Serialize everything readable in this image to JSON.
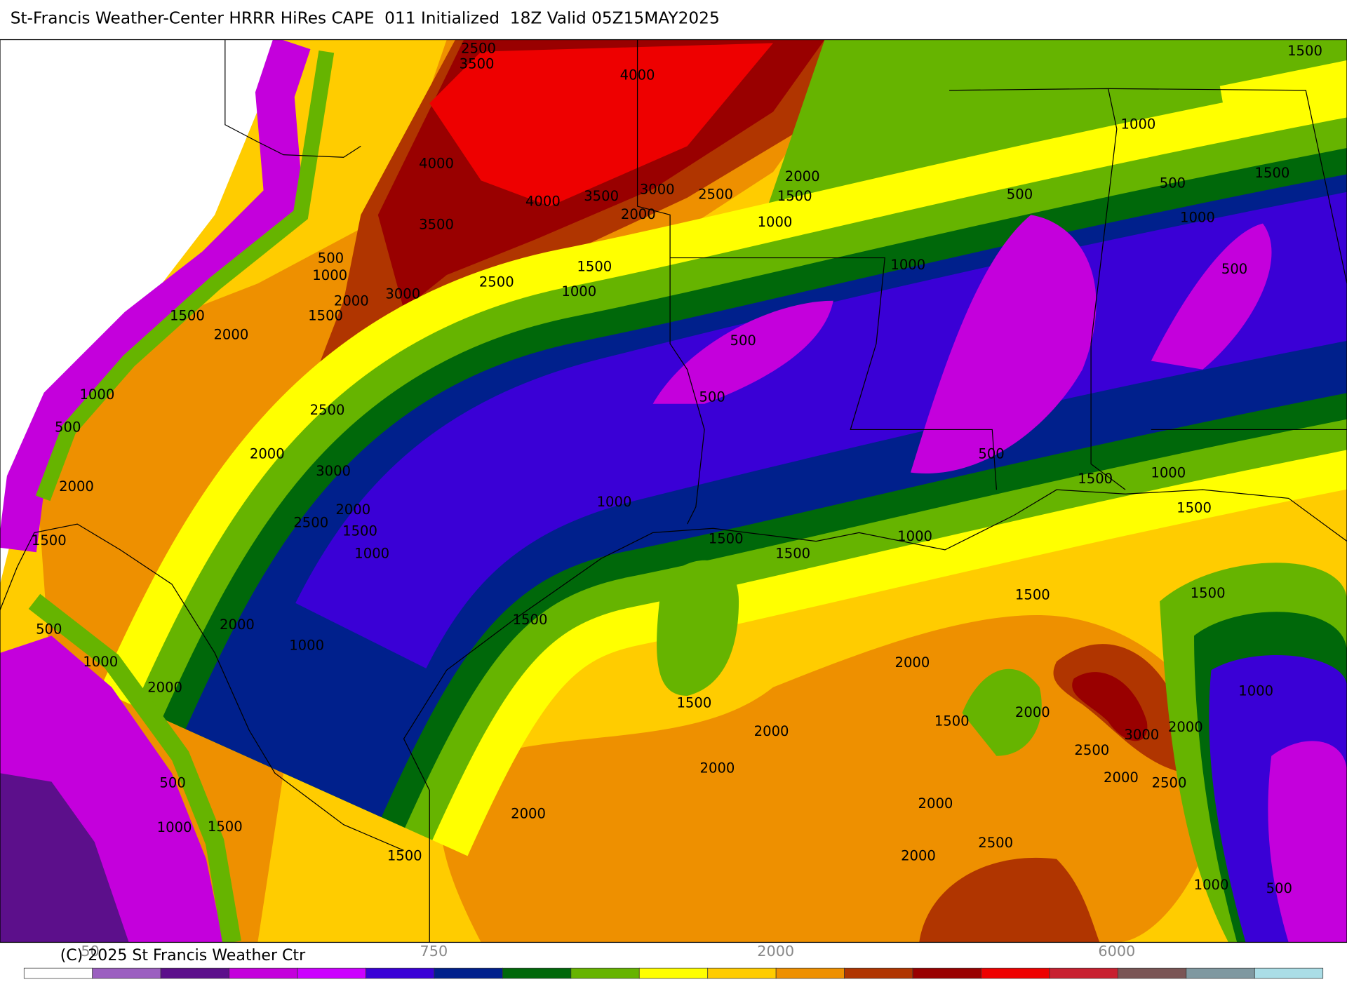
{
  "header": {
    "title": "St-Francis Weather-Center HRRR HiRes CAPE  011 Initialized  18Z Valid 05Z15MAY2025"
  },
  "map": {
    "contour_labels": [
      "2500",
      "3500",
      "4000",
      "4000",
      "3000",
      "2000",
      "1500",
      "2500",
      "3500",
      "4000",
      "2000",
      "1000",
      "3500",
      "500",
      "1000",
      "2500",
      "1500",
      "1000",
      "3000",
      "2000",
      "1500",
      "1500",
      "2000",
      "500",
      "1000",
      "500",
      "500",
      "1000",
      "1500",
      "1500",
      "1000",
      "500",
      "1000",
      "500",
      "2500",
      "2000",
      "3000",
      "500",
      "500",
      "1500",
      "1000",
      "1500",
      "2000",
      "1500",
      "2500",
      "2000",
      "1500",
      "1000",
      "1000",
      "1500",
      "1500",
      "1000",
      "1500",
      "1500",
      "1500",
      "2000",
      "500",
      "1000",
      "1000",
      "2000",
      "2000",
      "1000",
      "1500",
      "1500",
      "2000",
      "2000",
      "3000",
      "2000",
      "2500",
      "2000",
      "2000",
      "2500",
      "500",
      "2000",
      "2000",
      "1000",
      "1500",
      "2500",
      "1500",
      "2000",
      "1000",
      "500"
    ]
  },
  "colorbar": {
    "colors": [
      "#ffffff",
      "#9b5fc0",
      "#5c0f8b",
      "#c400dc",
      "#cc00ff",
      "#3a00d6",
      "#00208c",
      "#00680a",
      "#66b400",
      "#ffff00",
      "#ffcc00",
      "#ee9000",
      "#b03500",
      "#990000",
      "#ee0000",
      "#c82030",
      "#7a5555",
      "#7f98a0",
      "#aadde6"
    ],
    "labels": [
      "50",
      "750",
      "2000",
      "6000"
    ]
  },
  "footer": {
    "copyright": "(C) 2025 St Francis Weather Ctr"
  }
}
